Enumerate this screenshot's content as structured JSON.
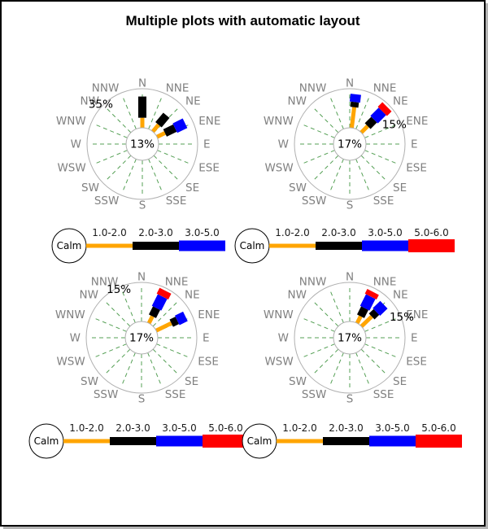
{
  "title": "Multiple plots with automatic layout",
  "compass": [
    "N",
    "NNE",
    "NE",
    "ENE",
    "E",
    "ESE",
    "SE",
    "SSE",
    "S",
    "SSW",
    "SW",
    "WSW",
    "W",
    "WNW",
    "NW",
    "NNW"
  ],
  "calm_label": "Calm",
  "speed_bins": [
    {
      "label": "1.0-2.0",
      "color": "#ffa500",
      "thickness": 5
    },
    {
      "label": "2.0-3.0",
      "color": "#000000",
      "thickness": 10
    },
    {
      "label": "3.0-5.0",
      "color": "#0000ff",
      "thickness": 13
    },
    {
      "label": "5.0-6.0",
      "color": "#ff0000",
      "thickness": 16
    }
  ],
  "styles": {
    "ring_color": "#b0b0b0",
    "spoke_color": "#55a055",
    "compass_label_color": "#808080",
    "text_color": "#000000"
  },
  "chart_data": [
    {
      "type": "windrose",
      "calm_text": "13%",
      "scale_max_percent": 35,
      "ring_label": {
        "text": "35%",
        "angle_deg": 314,
        "radius": 71
      },
      "bars": [
        {
          "angle_deg": 0,
          "segments": [
            {
              "bin": 0,
              "percent": 9
            },
            {
              "bin": 1,
              "percent": 19
            }
          ]
        },
        {
          "angle_deg": 40,
          "segments": [
            {
              "bin": 0,
              "percent": 8
            },
            {
              "bin": 1,
              "percent": 11
            }
          ]
        },
        {
          "angle_deg": 64,
          "segments": [
            {
              "bin": 0,
              "percent": 8
            },
            {
              "bin": 1,
              "percent": 10
            },
            {
              "bin": 2,
              "percent": 10
            }
          ]
        }
      ],
      "legend_bins": [
        0,
        1,
        2
      ]
    },
    {
      "type": "windrose",
      "calm_text": "17%",
      "scale_max_percent": 15,
      "ring_label": {
        "text": "15%",
        "angle_deg": 66,
        "radius": 60
      },
      "bars": [
        {
          "angle_deg": 7,
          "segments": [
            {
              "bin": 0,
              "percent": 8
            },
            {
              "bin": 1,
              "percent": 2
            },
            {
              "bin": 2,
              "percent": 3
            }
          ]
        },
        {
          "angle_deg": 45,
          "segments": [
            {
              "bin": 0,
              "percent": 3.5
            },
            {
              "bin": 1,
              "percent": 3.5
            },
            {
              "bin": 2,
              "percent": 4.5
            },
            {
              "bin": 3,
              "percent": 2.5
            }
          ]
        }
      ],
      "legend_bins": [
        0,
        1,
        2,
        3
      ]
    },
    {
      "type": "windrose",
      "calm_text": "17%",
      "scale_max_percent": 15,
      "ring_label": {
        "text": "15%",
        "angle_deg": 335,
        "radius": 66
      },
      "bars": [
        {
          "angle_deg": 27,
          "segments": [
            {
              "bin": 0,
              "percent": 3
            },
            {
              "bin": 1,
              "percent": 3.5
            },
            {
              "bin": 2,
              "percent": 5
            },
            {
              "bin": 3,
              "percent": 2.5
            }
          ]
        },
        {
          "angle_deg": 64,
          "segments": [
            {
              "bin": 0,
              "percent": 6.5
            },
            {
              "bin": 1,
              "percent": 2.5
            },
            {
              "bin": 2,
              "percent": 3.5
            }
          ]
        }
      ],
      "legend_bins": [
        0,
        1,
        2,
        3
      ]
    },
    {
      "type": "windrose",
      "calm_text": "17%",
      "scale_max_percent": 15,
      "ring_label": {
        "text": "15%",
        "angle_deg": 68,
        "radius": 69
      },
      "bars": [
        {
          "angle_deg": 27,
          "segments": [
            {
              "bin": 0,
              "percent": 3
            },
            {
              "bin": 1,
              "percent": 3.5
            },
            {
              "bin": 2,
              "percent": 5
            },
            {
              "bin": 3,
              "percent": 2
            }
          ]
        },
        {
          "angle_deg": 46,
          "segments": [
            {
              "bin": 0,
              "percent": 5.5
            },
            {
              "bin": 1,
              "percent": 2.5
            },
            {
              "bin": 2,
              "percent": 4
            }
          ]
        }
      ],
      "legend_bins": [
        0,
        1,
        2,
        3
      ]
    }
  ]
}
